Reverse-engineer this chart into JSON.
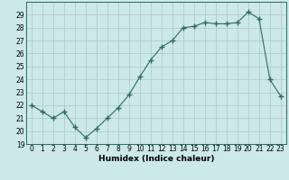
{
  "x": [
    0,
    1,
    2,
    3,
    4,
    5,
    6,
    7,
    8,
    9,
    10,
    11,
    12,
    13,
    14,
    15,
    16,
    17,
    18,
    19,
    20,
    21,
    22,
    23
  ],
  "y": [
    22.0,
    21.5,
    21.0,
    21.5,
    20.3,
    19.5,
    20.2,
    21.0,
    21.8,
    22.8,
    24.2,
    25.5,
    26.5,
    27.0,
    28.0,
    28.1,
    28.4,
    28.3,
    28.3,
    28.4,
    29.2,
    28.7,
    24.0,
    22.7
  ],
  "line_color": "#2d6b5e",
  "marker": "+",
  "marker_size": 4,
  "bg_color": "#cce8e8",
  "grid_color": "#b0cccc",
  "xlabel": "Humidex (Indice chaleur)",
  "ylim": [
    19,
    30
  ],
  "xlim": [
    -0.5,
    23.5
  ],
  "yticks": [
    19,
    20,
    21,
    22,
    23,
    24,
    25,
    26,
    27,
    28,
    29
  ],
  "xticks": [
    0,
    1,
    2,
    3,
    4,
    5,
    6,
    7,
    8,
    9,
    10,
    11,
    12,
    13,
    14,
    15,
    16,
    17,
    18,
    19,
    20,
    21,
    22,
    23
  ],
  "tick_fontsize": 5.5,
  "label_fontsize": 6.5
}
